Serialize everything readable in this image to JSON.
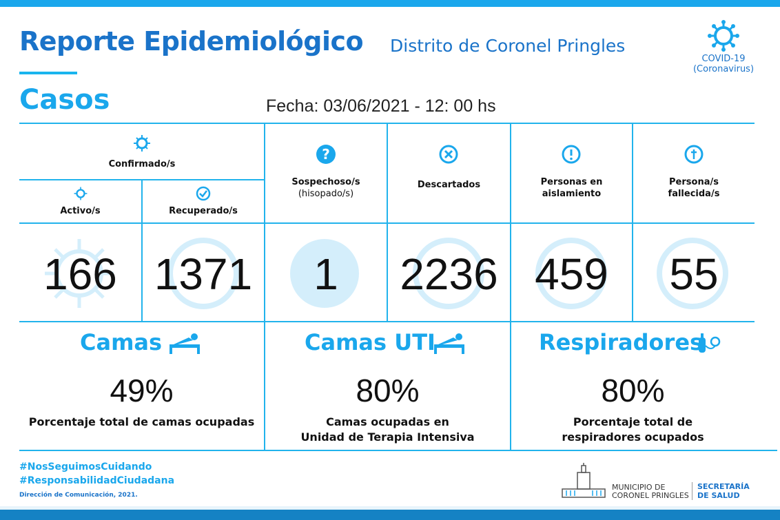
{
  "header": {
    "title": "Reporte Epidemiológico",
    "subtitle": "Distrito de Coronel Pringles",
    "section": "Casos",
    "fecha": "Fecha: 03/06/2021 - 12: 00 hs",
    "covid_label_1": "COVID-19",
    "covid_label_2": "(Coronavirus)"
  },
  "cases": {
    "confirmados_label": "Confirmado/s",
    "activos_label": "Activo/s",
    "activos_value": "166",
    "recuperados_label": "Recuperado/s",
    "recuperados_value": "1371",
    "sospechosos_label_1": "Sospechoso/s",
    "sospechosos_label_2": "(hisopado/s)",
    "sospechosos_value": "1",
    "descartados_label": "Descartados",
    "descartados_value": "2236",
    "aislamiento_label_1": "Personas en",
    "aislamiento_label_2": "aislamiento",
    "aislamiento_value": "459",
    "fallecidos_label_1": "Persona/s",
    "fallecidos_label_2": "fallecida/s",
    "fallecidos_value": "55"
  },
  "resources": {
    "camas_title": "Camas",
    "camas_value": "49%",
    "camas_desc": "Porcentaje total de camas ocupadas",
    "uti_title": "Camas UTI",
    "uti_value": "80%",
    "uti_desc_1": "Camas ocupadas en",
    "uti_desc_2": "Unidad de Terapia Intensiva",
    "resp_title": "Respiradores",
    "resp_value": "80%",
    "resp_desc_1": "Porcentaje total de",
    "resp_desc_2": "respiradores ocupados"
  },
  "footer": {
    "hashtag_1": "#NosSeguimosCuidando",
    "hashtag_2": "#ResponsabilidadCiudadana",
    "direccion": "Dirección de Comunicación, 2021.",
    "muni_1": "MUNICIPIO DE",
    "muni_2": "CORONEL PRINGLES",
    "secretaria_1": "SECRETARÍA",
    "secretaria_2": "DE SALUD"
  },
  "colors": {
    "primary_blue": "#1a73c9",
    "accent_cyan": "#1aa7ec"
  },
  "icons": [
    "virus-icon",
    "check-icon",
    "question-icon",
    "x-icon",
    "exclamation-icon",
    "cross-icon",
    "bed-icon",
    "respirator-icon",
    "building-logo"
  ]
}
